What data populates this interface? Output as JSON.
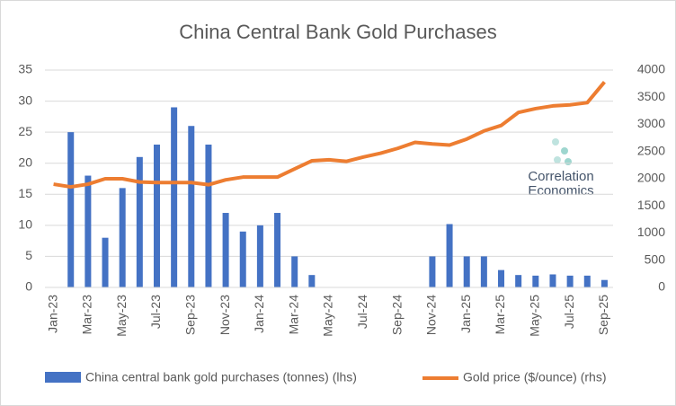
{
  "chart_data": {
    "type": "bar-line",
    "title": "China Central Bank Gold Purchases",
    "categories": [
      "Jan-23",
      null,
      "Mar-23",
      null,
      "May-23",
      null,
      "Jul-23",
      null,
      "Sep-23",
      null,
      "Nov-23",
      null,
      "Jan-24",
      null,
      "Mar-24",
      null,
      "May-24",
      null,
      "Jul-24",
      null,
      "Sep-24",
      null,
      "Nov-24",
      null,
      "Jan-25",
      null,
      "Mar-25",
      null,
      "May-25",
      null,
      "Jul-25",
      null,
      "Sep-25"
    ],
    "series": [
      {
        "name": "China central bank gold purchases (tonnes) (lhs)",
        "color": "#4472c4",
        "axis": "y",
        "values": [
          null,
          25,
          18,
          8,
          16,
          21,
          23,
          29,
          26,
          23,
          12,
          9,
          10,
          12,
          5,
          2,
          0,
          0,
          0,
          0,
          0,
          0,
          5,
          10.2,
          5,
          5,
          2.8,
          2,
          1.9,
          2.1,
          1.9,
          1.9,
          1.2
        ]
      },
      {
        "name": "Gold price ($/ounce) (rhs)",
        "color": "#ed7d31",
        "axis": "y2",
        "values": [
          1900,
          1850,
          1900,
          2000,
          2000,
          1940,
          1930,
          1930,
          1930,
          1890,
          1980,
          2030,
          2030,
          2030,
          2180,
          2330,
          2350,
          2320,
          2400,
          2470,
          2560,
          2670,
          2640,
          2620,
          2730,
          2880,
          2980,
          3220,
          3290,
          3340,
          3360,
          3400,
          3780
        ]
      }
    ],
    "ylim": [
      0,
      35
    ],
    "yticks": [
      0,
      5,
      10,
      15,
      20,
      25,
      30,
      35
    ],
    "y2lim": [
      0,
      4000
    ],
    "y2ticks": [
      0,
      500,
      1000,
      1500,
      2000,
      2500,
      3000,
      3500,
      4000
    ],
    "grid": true,
    "legend": "bottom",
    "watermark": [
      "Correlation",
      "Economics"
    ]
  }
}
